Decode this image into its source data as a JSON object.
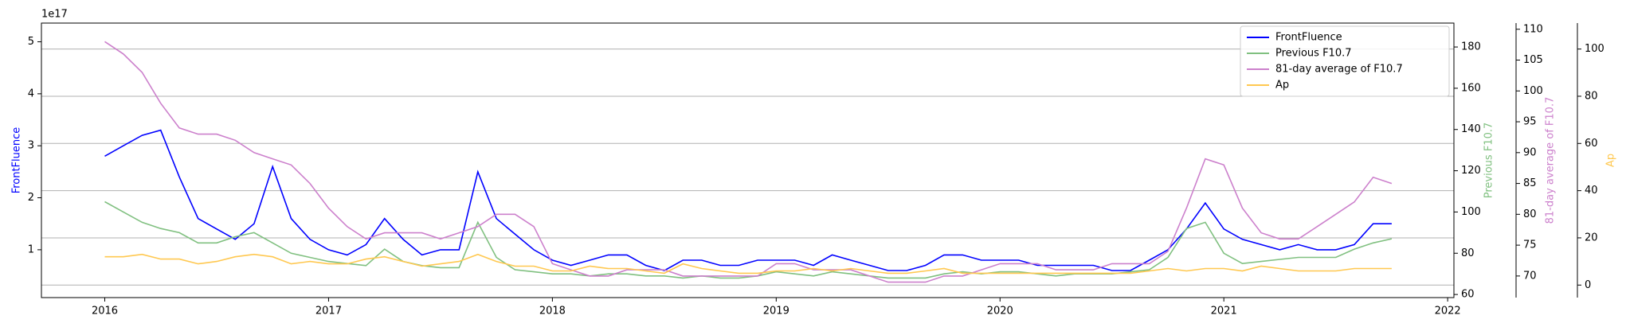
{
  "chart_data": {
    "type": "line",
    "y_offset_label": "1e17",
    "x": [
      2016,
      2016.083,
      2016.167,
      2016.25,
      2016.333,
      2016.417,
      2016.5,
      2016.583,
      2016.667,
      2016.75,
      2016.833,
      2016.917,
      2017,
      2017.083,
      2017.167,
      2017.25,
      2017.333,
      2017.417,
      2017.5,
      2017.583,
      2017.667,
      2017.75,
      2017.833,
      2017.917,
      2018,
      2018.083,
      2018.167,
      2018.25,
      2018.333,
      2018.417,
      2018.5,
      2018.583,
      2018.667,
      2018.75,
      2018.833,
      2018.917,
      2019,
      2019.083,
      2019.167,
      2019.25,
      2019.333,
      2019.417,
      2019.5,
      2019.583,
      2019.667,
      2019.75,
      2019.833,
      2019.917,
      2020,
      2020.083,
      2020.167,
      2020.25,
      2020.333,
      2020.417,
      2020.5,
      2020.583,
      2020.667,
      2020.75,
      2020.833,
      2020.917,
      2021,
      2021.083,
      2021.167,
      2021.25,
      2021.333,
      2021.417,
      2021.5,
      2021.583,
      2021.667,
      2021.75
    ],
    "xlim": [
      2015.717,
      2022.028
    ],
    "xticks": [
      2016,
      2017,
      2018,
      2019,
      2020,
      2021,
      2022
    ],
    "ylim": [
      0.08,
      5.36
    ],
    "yticks": [
      1,
      2,
      3,
      4,
      5
    ],
    "y2lim": [
      58.5,
      191.6
    ],
    "y2ticks": [
      60,
      80,
      100,
      120,
      140,
      160,
      180
    ],
    "y3lim": [
      66.5,
      111
    ],
    "y3ticks": [
      70,
      75,
      80,
      85,
      90,
      95,
      100,
      105,
      110
    ],
    "y4lim": [
      -5.3,
      111
    ],
    "y4ticks": [
      0,
      20,
      40,
      60,
      80,
      100
    ],
    "grid": "y4",
    "legend": "upper right",
    "series": [
      {
        "name": "FrontFluence",
        "color": "#0000ff",
        "axis": "y",
        "values": [
          2.8,
          3.0,
          3.2,
          3.3,
          2.4,
          1.6,
          1.4,
          1.2,
          1.5,
          2.6,
          1.6,
          1.2,
          1.0,
          0.9,
          1.1,
          1.6,
          1.2,
          0.9,
          1.0,
          1.0,
          2.5,
          1.6,
          1.3,
          1.0,
          0.8,
          0.7,
          0.8,
          0.9,
          0.9,
          0.7,
          0.6,
          0.8,
          0.8,
          0.7,
          0.7,
          0.8,
          0.8,
          0.8,
          0.7,
          0.9,
          0.8,
          0.7,
          0.6,
          0.6,
          0.7,
          0.9,
          0.9,
          0.8,
          0.8,
          0.8,
          0.7,
          0.7,
          0.7,
          0.7,
          0.6,
          0.6,
          0.8,
          1.0,
          1.4,
          1.9,
          1.4,
          1.2,
          1.1,
          1.0,
          1.1,
          1.0,
          1.0,
          1.1,
          1.5,
          1.5
        ]
      },
      {
        "name": "Previous F10.7",
        "color": "#80c080",
        "axis": "y2",
        "values": [
          105,
          100,
          95,
          92,
          90,
          85,
          85,
          88,
          90,
          85,
          80,
          78,
          76,
          75,
          74,
          82,
          76,
          74,
          73,
          73,
          95,
          78,
          72,
          71,
          70,
          70,
          69,
          70,
          70,
          69,
          69,
          68,
          69,
          68,
          68,
          69,
          71,
          70,
          69,
          71,
          70,
          69,
          68,
          68,
          68,
          70,
          71,
          70,
          71,
          71,
          70,
          69,
          70,
          70,
          70,
          71,
          72,
          78,
          92,
          95,
          80,
          75,
          76,
          77,
          78,
          78,
          78,
          82,
          85,
          87
        ]
      },
      {
        "name": "81-day average of F10.7",
        "color": "#cc80cc",
        "axis": "y3",
        "values": [
          108,
          106,
          103,
          98,
          94,
          93,
          93,
          92,
          90,
          89,
          88,
          85,
          81,
          78,
          76,
          77,
          77,
          77,
          76,
          77,
          78,
          80,
          80,
          78,
          72,
          71,
          70,
          70,
          71,
          71,
          71,
          70,
          70,
          70,
          70,
          70,
          72,
          72,
          71,
          71,
          71,
          70,
          69,
          69,
          69,
          70,
          70,
          71,
          72,
          72,
          72,
          71,
          71,
          71,
          72,
          72,
          72,
          74,
          81,
          89,
          88,
          81,
          77,
          76,
          76,
          78,
          80,
          82,
          86,
          85
        ]
      },
      {
        "name": "Ap",
        "color": "#ffc850",
        "axis": "y4",
        "values": [
          12,
          12,
          13,
          11,
          11,
          9,
          10,
          12,
          13,
          12,
          9,
          10,
          9,
          9,
          11,
          12,
          10,
          8,
          9,
          10,
          13,
          10,
          8,
          8,
          6,
          6,
          8,
          7,
          7,
          6,
          5,
          9,
          7,
          6,
          5,
          5,
          6,
          6,
          7,
          6,
          7,
          6,
          5,
          5,
          6,
          7,
          5,
          5,
          5,
          5,
          5,
          5,
          5,
          5,
          5,
          5,
          6,
          7,
          6,
          7,
          7,
          6,
          8,
          7,
          6,
          6,
          6,
          7,
          7,
          7
        ]
      }
    ]
  }
}
